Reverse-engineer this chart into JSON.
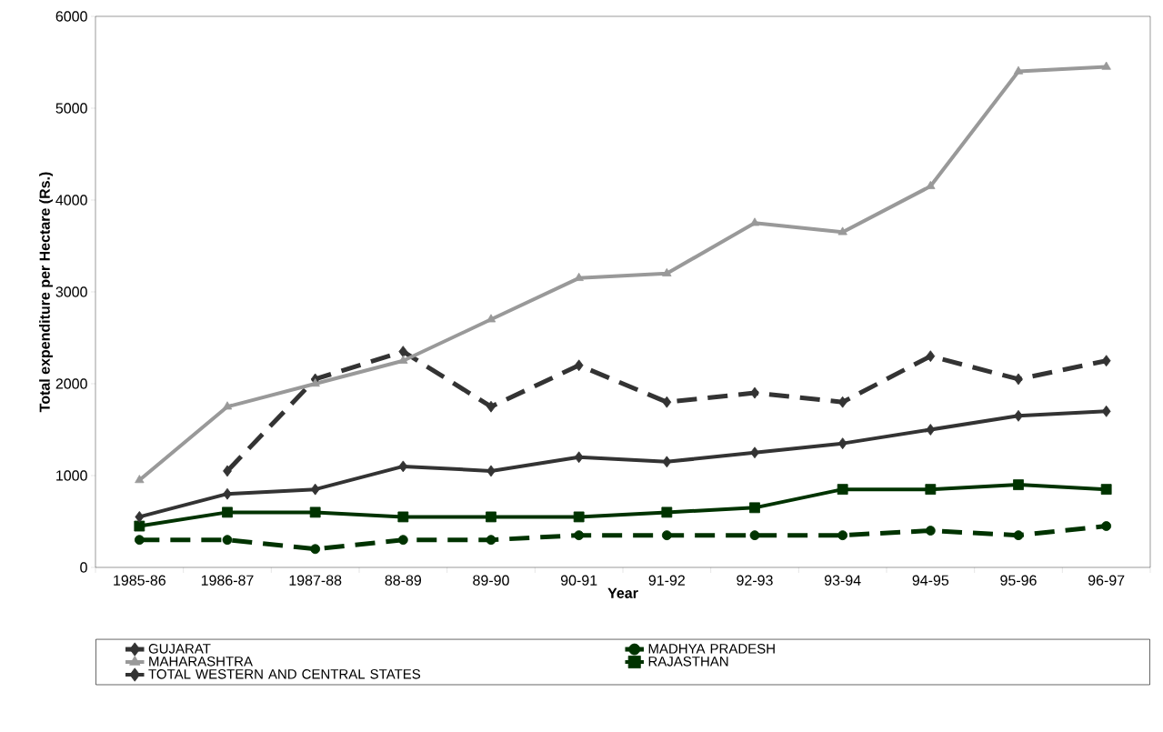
{
  "chart_data": {
    "type": "line",
    "xlabel": "Year",
    "ylabel": "Total expenditure per Hectare (Rs.)",
    "categories": [
      "1985-86",
      "1986-87",
      "1987-88",
      "88-89",
      "89-90",
      "90-91",
      "91-92",
      "92-93",
      "93-94",
      "94-95",
      "95-96",
      "96-97"
    ],
    "ylim": [
      0,
      6000
    ],
    "yticks": [
      0,
      1000,
      2000,
      3000,
      4000,
      5000,
      6000
    ],
    "grid": false,
    "legend": "bottom",
    "series": [
      {
        "name": "GUJARAT",
        "color": "#333333",
        "marker": "diamond",
        "line_style": "dashed",
        "values": [
          null,
          1050,
          2050,
          2350,
          1750,
          2200,
          1800,
          1900,
          1800,
          2300,
          2050,
          2250
        ]
      },
      {
        "name": "MADHYA PRADESH",
        "color": "#003300",
        "marker": "circle",
        "line_style": "dashed",
        "values": [
          300,
          300,
          200,
          300,
          300,
          350,
          350,
          350,
          350,
          400,
          350,
          450
        ]
      },
      {
        "name": "MAHARASHTRA",
        "color": "#999999",
        "marker": "triangle",
        "line_style": "solid",
        "values": [
          950,
          1750,
          2000,
          2250,
          2700,
          3150,
          3200,
          3750,
          3650,
          4150,
          5400,
          5450
        ]
      },
      {
        "name": "RAJASTHAN",
        "color": "#003300",
        "marker": "square",
        "line_style": "solid",
        "values": [
          450,
          600,
          600,
          550,
          550,
          550,
          600,
          650,
          850,
          850,
          900,
          850
        ]
      },
      {
        "name": "TOTAL WESTERN AND CENTRAL STATES",
        "color": "#333333",
        "marker": "diamond",
        "line_style": "solid",
        "values": [
          550,
          800,
          850,
          1100,
          1050,
          1200,
          1150,
          1250,
          1350,
          1500,
          1650,
          1700
        ]
      }
    ]
  }
}
